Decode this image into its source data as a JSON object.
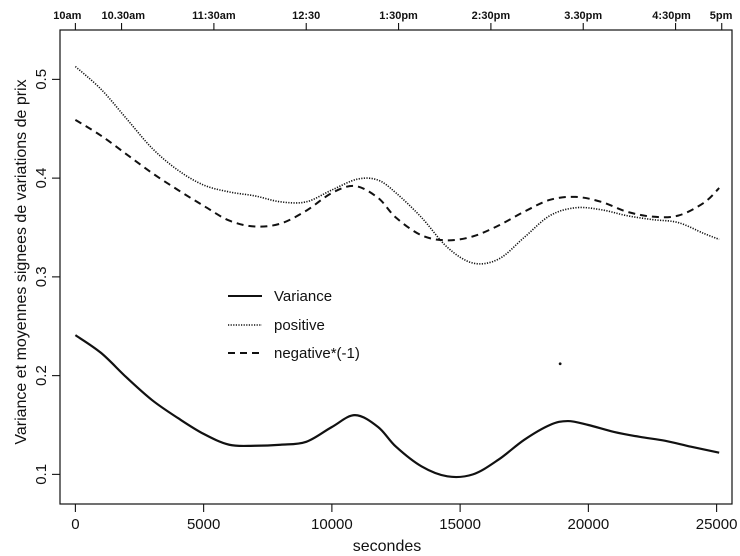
{
  "chart_data": {
    "type": "line",
    "xlabel": "secondes",
    "ylabel": "Variance et moyennes signees de variations de prix",
    "xlim": [
      -600,
      25600
    ],
    "ylim": [
      0.07,
      0.55
    ],
    "x_ticks": [
      0,
      5000,
      10000,
      15000,
      20000,
      25000
    ],
    "y_ticks": [
      0.1,
      0.2,
      0.3,
      0.4,
      0.5
    ],
    "top_axis_ticks": [
      {
        "x": 0,
        "label": "10am"
      },
      {
        "x": 1800,
        "label": "10.30am"
      },
      {
        "x": 5400,
        "label": "11:30am"
      },
      {
        "x": 9000,
        "label": "12:30"
      },
      {
        "x": 12600,
        "label": "1:30pm"
      },
      {
        "x": 16200,
        "label": "2:30pm"
      },
      {
        "x": 19800,
        "label": "3.30pm"
      },
      {
        "x": 23400,
        "label": "4:30pm"
      },
      {
        "x": 25200,
        "label": "5pm"
      }
    ],
    "legend": {
      "placement": "center-left",
      "entries": [
        "Variance",
        "positive",
        "negative*(-1)"
      ]
    },
    "series": [
      {
        "name": "Variance",
        "style": "solid",
        "x": [
          0,
          1000,
          2000,
          3000,
          4000,
          5000,
          6000,
          7000,
          8000,
          9000,
          10000,
          10900,
          11800,
          12500,
          13500,
          14500,
          15500,
          16500,
          17500,
          18500,
          19200,
          20000,
          21000,
          22000,
          23000,
          24000,
          25100
        ],
        "y": [
          0.241,
          0.223,
          0.198,
          0.175,
          0.157,
          0.141,
          0.13,
          0.129,
          0.13,
          0.133,
          0.148,
          0.16,
          0.148,
          0.128,
          0.108,
          0.098,
          0.1,
          0.115,
          0.135,
          0.15,
          0.154,
          0.15,
          0.143,
          0.138,
          0.134,
          0.128,
          0.122
        ]
      },
      {
        "name": "positive",
        "style": "dotted",
        "x": [
          0,
          1000,
          2000,
          3000,
          4000,
          5000,
          6000,
          7000,
          8000,
          9000,
          10000,
          11000,
          11800,
          12500,
          13500,
          14500,
          15500,
          16500,
          17500,
          18500,
          19500,
          20500,
          21500,
          22500,
          23500,
          24500,
          25100
        ],
        "y": [
          0.513,
          0.49,
          0.46,
          0.43,
          0.408,
          0.393,
          0.386,
          0.382,
          0.376,
          0.376,
          0.388,
          0.399,
          0.398,
          0.385,
          0.36,
          0.33,
          0.314,
          0.318,
          0.34,
          0.362,
          0.37,
          0.368,
          0.362,
          0.358,
          0.355,
          0.344,
          0.338
        ]
      },
      {
        "name": "negative*(-1)",
        "style": "dashed",
        "x": [
          0,
          1000,
          2000,
          3000,
          4000,
          5000,
          6000,
          7000,
          8000,
          9000,
          10000,
          10900,
          11800,
          12500,
          13500,
          14500,
          15500,
          16500,
          17500,
          18500,
          19500,
          20500,
          21500,
          22500,
          23500,
          24500,
          25100
        ],
        "y": [
          0.459,
          0.443,
          0.424,
          0.405,
          0.388,
          0.372,
          0.357,
          0.351,
          0.354,
          0.367,
          0.385,
          0.392,
          0.38,
          0.36,
          0.342,
          0.337,
          0.341,
          0.352,
          0.366,
          0.378,
          0.381,
          0.376,
          0.366,
          0.361,
          0.362,
          0.375,
          0.39
        ]
      }
    ],
    "stray_mark": {
      "x": 18900,
      "y": 0.212
    }
  }
}
